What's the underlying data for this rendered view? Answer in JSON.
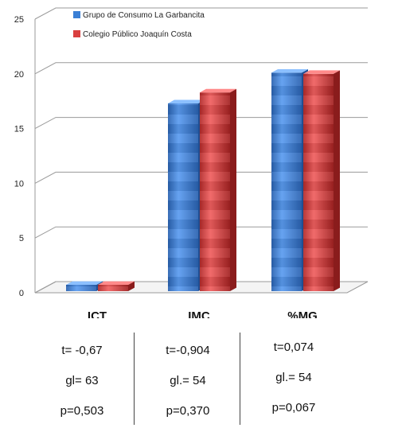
{
  "chart_data": {
    "type": "bar",
    "categories": [
      "ICT",
      "IMC",
      "%MG"
    ],
    "series": [
      {
        "name": "Grupo de Consumo La Garbancita",
        "values": [
          0.5,
          17.3,
          20.1
        ]
      },
      {
        "name": "Colegio Público Joaquín Costa",
        "values": [
          0.5,
          18.3,
          20.0
        ]
      }
    ],
    "y_ticks": [
      "0",
      "5",
      "10",
      "15",
      "20",
      "25"
    ],
    "ylim": [
      0,
      25
    ],
    "grid": true,
    "legend_position": "top-left",
    "style": "3d-cylinder",
    "colors": {
      "series1": "#3a7fd5",
      "series2": "#d94040"
    }
  },
  "stats": [
    {
      "t": "t= -0,67",
      "gl": "gl= 63",
      "p": "p=0,503"
    },
    {
      "t": "t=-0,904",
      "gl": "gl.= 54",
      "p": "p=0,370"
    },
    {
      "t": "t=0,074",
      "gl": "gl.= 54",
      "p": "p=0,067"
    }
  ]
}
